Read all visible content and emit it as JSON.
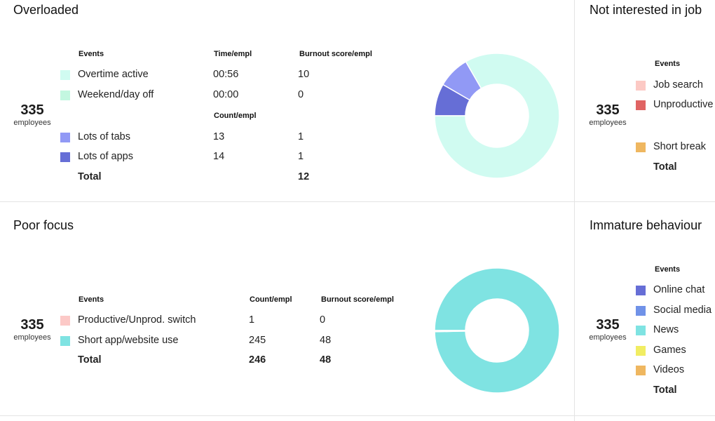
{
  "overloaded": {
    "title": "Overloaded",
    "count": "335",
    "count_label": "employees",
    "col_events": "Events",
    "col_time": "Time/empl",
    "col_burnout": "Burnout score/empl",
    "col_count": "Count/empl",
    "rows": [
      {
        "event": "Overtime active",
        "value": "00:56",
        "burnout": "10",
        "color": "#d0fbf1"
      },
      {
        "event": "Weekend/day off",
        "value": "00:00",
        "burnout": "0",
        "color": "#c3f7e0"
      },
      {
        "event": "Lots of tabs",
        "value": "13",
        "burnout": "1",
        "color": "#9199f5"
      },
      {
        "event": "Lots of apps",
        "value": "14",
        "burnout": "1",
        "color": "#666ed6"
      }
    ],
    "total_label": "Total",
    "total_burnout": "12"
  },
  "not_interested": {
    "title": "Not interested in job",
    "count": "335",
    "count_label": "employees",
    "col_events": "Events",
    "rows": [
      {
        "event": "Job search",
        "color": "#fcc9c4"
      },
      {
        "event": "Unproductive",
        "color": "#e06463"
      },
      {
        "event": "Short break",
        "color": "#efb760"
      }
    ],
    "total_label": "Total"
  },
  "poor_focus": {
    "title": "Poor focus",
    "count": "335",
    "count_label": "employees",
    "col_events": "Events",
    "col_count": "Count/empl",
    "col_burnout": "Burnout score/empl",
    "rows": [
      {
        "event": "Productive/Unprod. switch",
        "count": "1",
        "burnout": "0",
        "color": "#fcc9c7"
      },
      {
        "event": "Short app/website use",
        "count": "245",
        "burnout": "48",
        "color": "#7fe3e2"
      }
    ],
    "total_label": "Total",
    "total_count": "246",
    "total_burnout": "48"
  },
  "immature": {
    "title": "Immature behaviour",
    "count": "335",
    "count_label": "employees",
    "col_events": "Events",
    "rows": [
      {
        "event": "Online chat",
        "color": "#666ed6"
      },
      {
        "event": "Social media",
        "color": "#7092e8"
      },
      {
        "event": "News",
        "color": "#7fe3e2"
      },
      {
        "event": "Games",
        "color": "#f1ed62"
      },
      {
        "event": "Videos",
        "color": "#efb760"
      }
    ],
    "total_label": "Total"
  },
  "charts": {
    "overloaded": [
      {
        "label": "Overtime active",
        "value": 10,
        "color": "#d0fbf1"
      },
      {
        "label": "Weekend/day off",
        "value": 0,
        "color": "#c3f7e0"
      },
      {
        "label": "Lots of tabs",
        "value": 1,
        "color": "#9199f5"
      },
      {
        "label": "Lots of apps",
        "value": 1,
        "color": "#666ed6"
      }
    ],
    "poor_focus": [
      {
        "label": "Productive/Unprod. switch",
        "value": 0.15,
        "color": "#fcc9c7"
      },
      {
        "label": "Short app/website use",
        "value": 48,
        "color": "#7fe3e2"
      }
    ]
  }
}
